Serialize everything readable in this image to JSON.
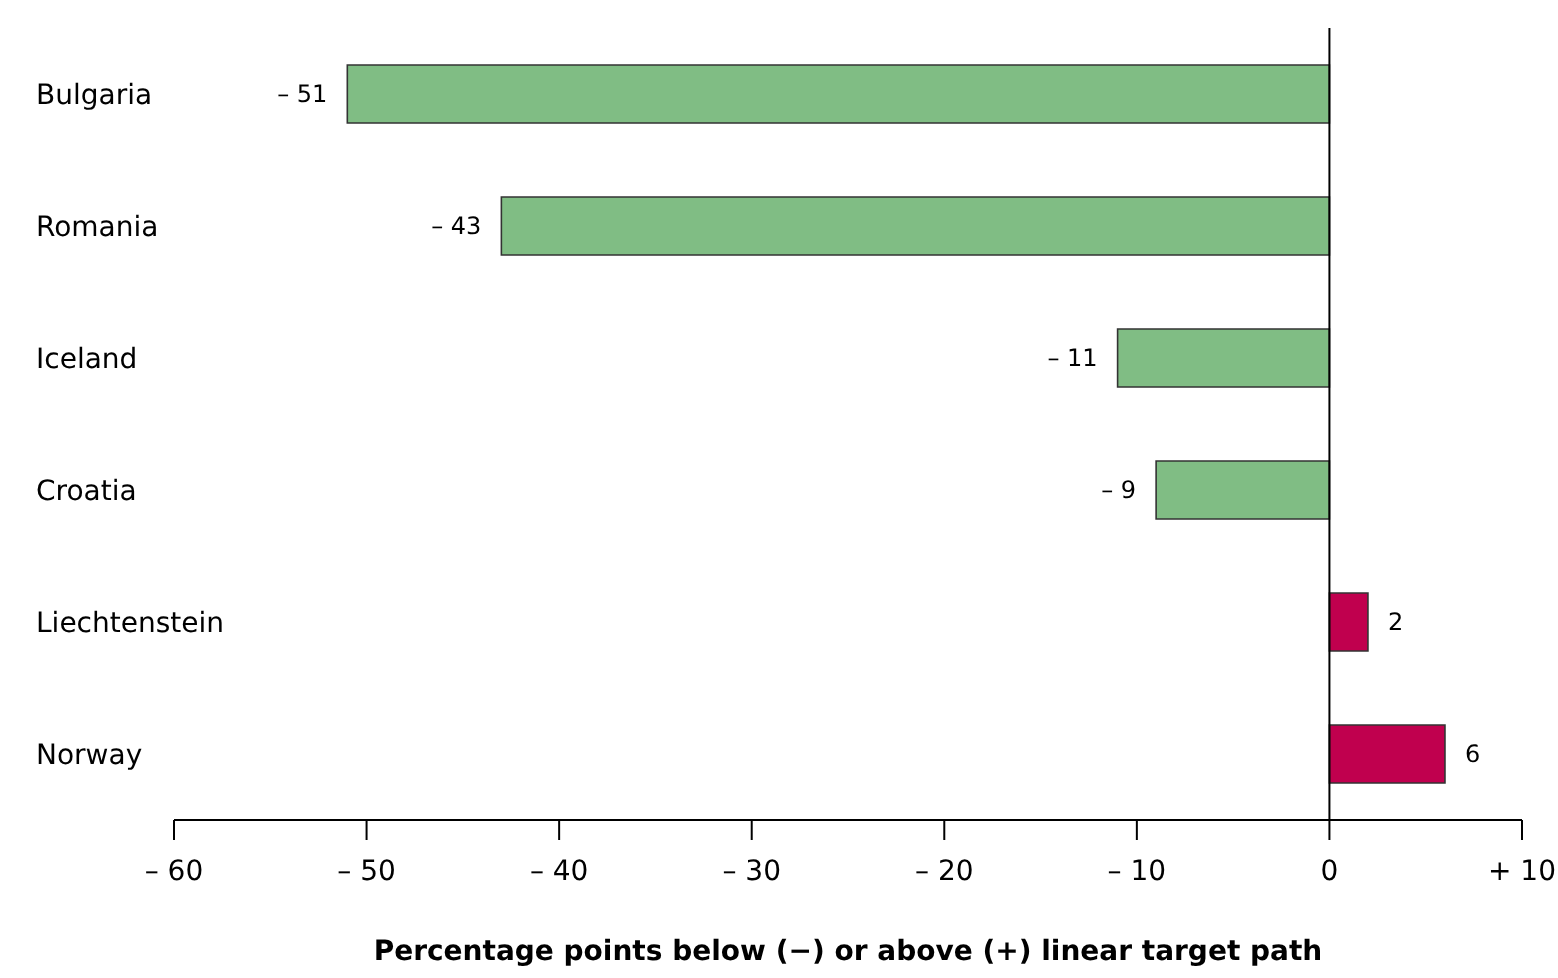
{
  "chart_data": {
    "type": "bar",
    "orientation": "horizontal",
    "xlabel": "Percentage points below (−) or above (+) linear target path",
    "categories": [
      "Bulgaria",
      "Romania",
      "Iceland",
      "Croatia",
      "Liechtenstein",
      "Norway"
    ],
    "values": [
      -51,
      -43,
      -11,
      -9,
      2,
      6
    ],
    "colors": [
      "#80bd84",
      "#80bd84",
      "#80bd84",
      "#80bd84",
      "#c0004e",
      "#c0004e"
    ],
    "value_labels": [
      "– 51",
      "– 43",
      "– 11",
      "– 9",
      "2",
      "6"
    ],
    "xlim": [
      -60,
      10
    ],
    "xticks": [
      {
        "value": -60,
        "label": "– 60"
      },
      {
        "value": -50,
        "label": "– 50"
      },
      {
        "value": -40,
        "label": "– 40"
      },
      {
        "value": -30,
        "label": "– 30"
      },
      {
        "value": -20,
        "label": "– 20"
      },
      {
        "value": -10,
        "label": "– 10"
      },
      0,
      {
        "value": 10,
        "label": "+ 10"
      }
    ],
    "ref_lines": [
      {
        "axis": "x",
        "value": 0,
        "color": "#000000"
      }
    ]
  }
}
